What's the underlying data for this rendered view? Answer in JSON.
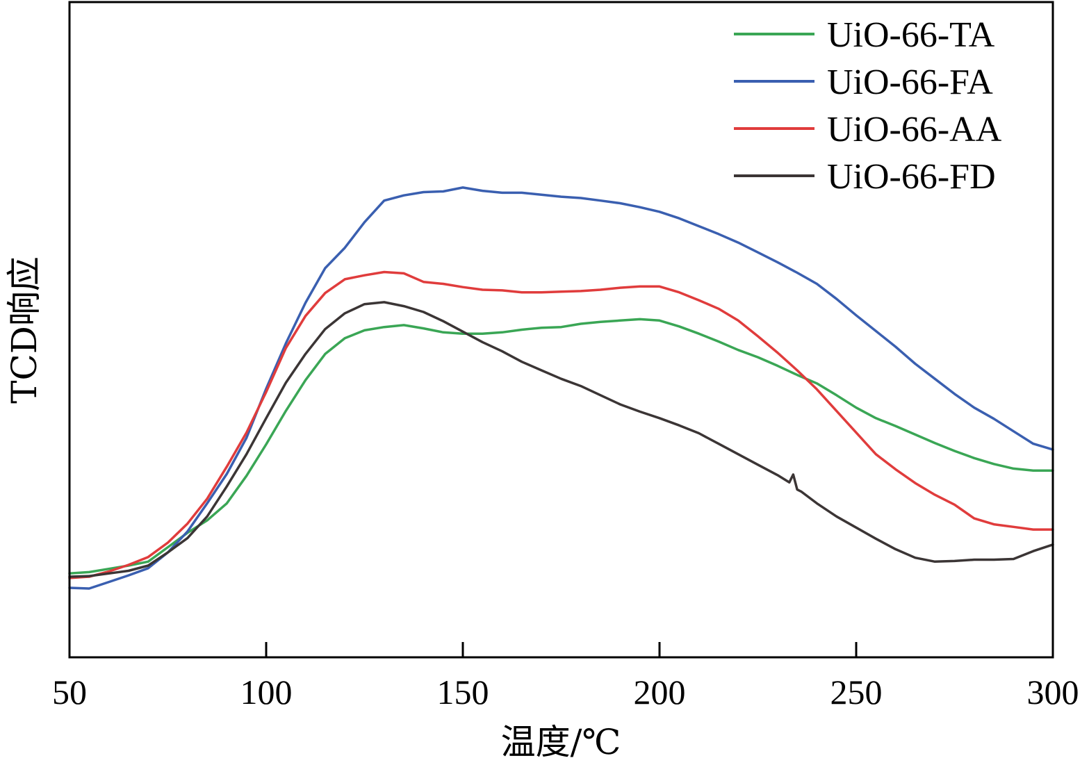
{
  "chart_data": {
    "type": "line",
    "title": "",
    "xlabel": "温度/℃",
    "ylabel": "TCD响应",
    "xlim": [
      50,
      300
    ],
    "ylim": [
      0,
      100
    ],
    "x_ticks": [
      50,
      100,
      150,
      200,
      250,
      300
    ],
    "y_ticks_shown": false,
    "grid": false,
    "legend_position": "top-right",
    "series": [
      {
        "name": "UiO-66-TA",
        "color": "#3aa655",
        "x": [
          50,
          55,
          60,
          65,
          70,
          75,
          80,
          85,
          90,
          95,
          100,
          105,
          110,
          115,
          120,
          125,
          130,
          135,
          140,
          145,
          150,
          155,
          160,
          165,
          170,
          175,
          180,
          185,
          190,
          195,
          200,
          205,
          210,
          215,
          220,
          225,
          230,
          235,
          240,
          245,
          250,
          255,
          260,
          265,
          270,
          275,
          280,
          285,
          290,
          295,
          300
        ],
        "y": [
          12.8,
          13.0,
          13.5,
          14.0,
          14.6,
          16.8,
          19.0,
          20.9,
          23.5,
          27.7,
          32.5,
          37.6,
          42.3,
          46.3,
          48.7,
          49.9,
          50.4,
          50.7,
          50.2,
          49.6,
          49.4,
          49.4,
          49.6,
          50.0,
          50.3,
          50.4,
          50.9,
          51.2,
          51.4,
          51.6,
          51.4,
          50.5,
          49.4,
          48.2,
          46.9,
          45.8,
          44.5,
          43.1,
          41.8,
          40.0,
          38.1,
          36.5,
          35.3,
          34.0,
          32.7,
          31.5,
          30.4,
          29.5,
          28.8,
          28.5,
          28.5
        ]
      },
      {
        "name": "UiO-66-FA",
        "color": "#3a5fb0",
        "x": [
          50,
          55,
          60,
          65,
          70,
          75,
          80,
          85,
          90,
          95,
          100,
          105,
          110,
          115,
          120,
          125,
          130,
          135,
          140,
          145,
          150,
          155,
          160,
          165,
          170,
          175,
          180,
          185,
          190,
          195,
          200,
          205,
          210,
          215,
          220,
          225,
          230,
          235,
          240,
          245,
          250,
          255,
          260,
          265,
          270,
          275,
          280,
          285,
          290,
          295,
          300
        ],
        "y": [
          10.6,
          10.5,
          11.5,
          12.5,
          13.6,
          16.0,
          19.2,
          23.5,
          28.0,
          33.5,
          41.0,
          47.9,
          54.1,
          59.4,
          62.5,
          66.4,
          69.7,
          70.5,
          71.0,
          71.1,
          71.7,
          71.2,
          70.9,
          70.9,
          70.6,
          70.3,
          70.1,
          69.7,
          69.3,
          68.7,
          68.0,
          67.0,
          65.8,
          64.6,
          63.3,
          61.8,
          60.3,
          58.7,
          57.0,
          54.7,
          52.2,
          49.8,
          47.4,
          44.8,
          42.5,
          40.2,
          38.1,
          36.4,
          34.5,
          32.6,
          31.7
        ]
      },
      {
        "name": "UiO-66-AA",
        "color": "#e03c3c",
        "x": [
          50,
          55,
          60,
          65,
          70,
          75,
          80,
          85,
          90,
          95,
          100,
          105,
          110,
          115,
          120,
          125,
          130,
          135,
          140,
          145,
          150,
          155,
          160,
          165,
          170,
          175,
          180,
          185,
          190,
          195,
          200,
          205,
          210,
          215,
          220,
          225,
          230,
          235,
          240,
          245,
          250,
          255,
          260,
          265,
          270,
          275,
          280,
          285,
          290,
          295,
          300
        ],
        "y": [
          12.1,
          12.3,
          13.1,
          14.1,
          15.3,
          17.5,
          20.4,
          24.2,
          29.1,
          34.3,
          40.5,
          47.2,
          52.1,
          55.6,
          57.7,
          58.3,
          58.8,
          58.6,
          57.3,
          57.0,
          56.5,
          56.1,
          56.0,
          55.7,
          55.7,
          55.8,
          55.9,
          56.1,
          56.4,
          56.6,
          56.6,
          55.7,
          54.5,
          53.2,
          51.4,
          49.0,
          46.5,
          43.8,
          40.9,
          37.6,
          34.3,
          31.0,
          28.7,
          26.6,
          24.8,
          23.3,
          21.2,
          20.3,
          19.9,
          19.5,
          19.5
        ]
      },
      {
        "name": "UiO-66-FD",
        "color": "#3b3535",
        "x": [
          50,
          55,
          60,
          65,
          70,
          75,
          80,
          85,
          90,
          95,
          100,
          105,
          110,
          115,
          120,
          125,
          130,
          135,
          140,
          145,
          150,
          155,
          160,
          165,
          170,
          175,
          180,
          185,
          190,
          195,
          200,
          205,
          210,
          215,
          220,
          225,
          230,
          233,
          234,
          235,
          236,
          240,
          245,
          250,
          255,
          260,
          265,
          270,
          275,
          280,
          285,
          290,
          295,
          300
        ],
        "y": [
          12.3,
          12.4,
          12.8,
          13.2,
          14.0,
          16.0,
          18.2,
          21.5,
          26.1,
          31.0,
          36.5,
          41.9,
          46.3,
          50.1,
          52.5,
          53.9,
          54.2,
          53.6,
          52.7,
          51.3,
          49.7,
          48.1,
          46.7,
          45.1,
          43.8,
          42.5,
          41.4,
          40.0,
          38.6,
          37.5,
          36.5,
          35.4,
          34.2,
          32.6,
          31.0,
          29.4,
          27.8,
          26.7,
          27.9,
          25.6,
          25.3,
          23.5,
          21.5,
          19.8,
          18.1,
          16.5,
          15.2,
          14.6,
          14.7,
          14.9,
          14.9,
          15.0,
          16.2,
          17.2
        ]
      }
    ]
  }
}
